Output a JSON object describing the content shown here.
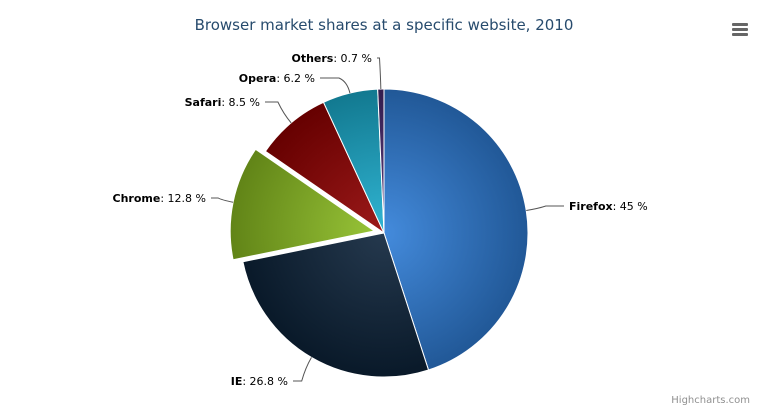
{
  "chart_data": {
    "type": "pie",
    "title": "Browser market shares at a specific website, 2010",
    "unit": "%",
    "slices": [
      {
        "name": "Firefox",
        "value": 45.0,
        "color": "#2f7ed8",
        "sliced": false
      },
      {
        "name": "IE",
        "value": 26.8,
        "color": "#0d233a",
        "sliced": false
      },
      {
        "name": "Chrome",
        "value": 12.8,
        "color": "#8bbc21",
        "sliced": true
      },
      {
        "name": "Safari",
        "value": 8.5,
        "color": "#910000",
        "sliced": false
      },
      {
        "name": "Opera",
        "value": 6.2,
        "color": "#1aadce",
        "sliced": false
      },
      {
        "name": "Others",
        "value": 0.7,
        "color": "#492970",
        "sliced": false
      }
    ],
    "legend": "none"
  },
  "credit": "Highcharts.com",
  "menu_icon": "hamburger-menu-icon"
}
